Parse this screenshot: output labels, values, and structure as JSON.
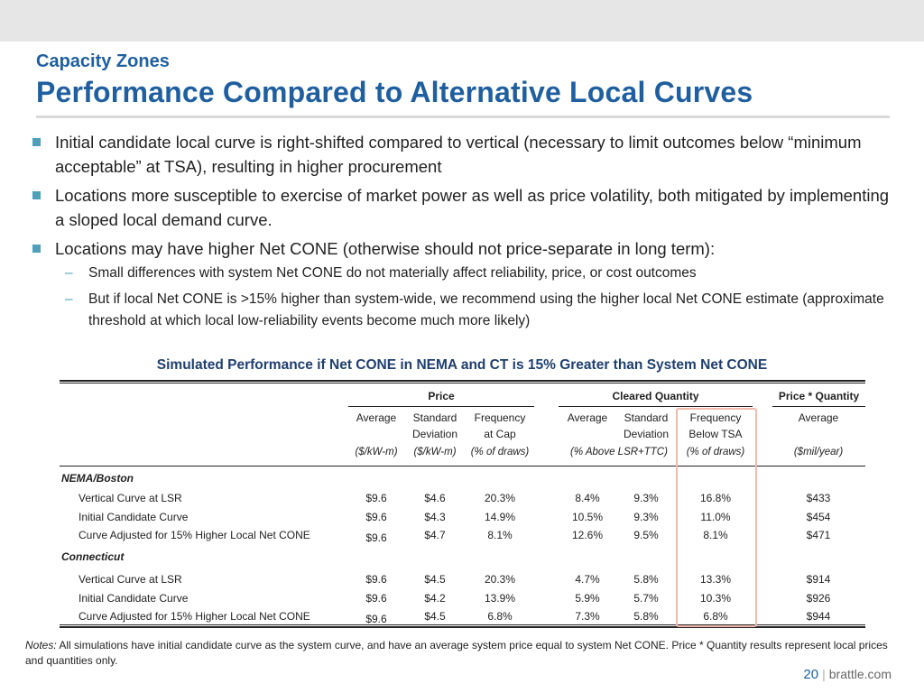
{
  "header": {
    "subtitle": "Capacity Zones",
    "title": "Performance Compared to Alternative Local Curves"
  },
  "bullets": [
    "Initial candidate local curve is right-shifted compared to vertical (necessary to limit outcomes below “minimum acceptable” at TSA), resulting in higher procurement",
    "Locations more susceptible to exercise of market power as well as price volatility, both mitigated by implementing a sloped local demand curve.",
    "Locations may have higher Net CONE (otherwise should not price-separate in long term):"
  ],
  "sub_bullets": [
    "Small differences with system Net CONE do not materially affect reliability, price, or cost outcomes",
    "But if local Net CONE is >15% higher than system-wide, we recommend using the higher local Net CONE estimate (approximate threshold at which local low-reliability events become much more likely)"
  ],
  "table": {
    "caption": "Simulated Performance if Net CONE in NEMA and CT is 15% Greater than System Net CONE",
    "groups": [
      "Price",
      "Cleared Quantity",
      "Price * Quantity"
    ],
    "col_headers": [
      [
        "Average",
        ""
      ],
      [
        "Standard",
        "Deviation"
      ],
      [
        "Frequency",
        "at Cap"
      ],
      [
        "Average",
        ""
      ],
      [
        "Standard",
        "Deviation"
      ],
      [
        "Frequency",
        "Below TSA"
      ],
      [
        "Average",
        ""
      ]
    ],
    "units": [
      "($/kW-m)",
      "($/kW-m)",
      "(% of draws)",
      "(% Above LSR+TTC)",
      "(% of draws)",
      "($mil/year)"
    ],
    "sections": [
      {
        "name": "NEMA/Boston",
        "rows": [
          {
            "label": "Vertical Curve at LSR",
            "values": [
              "$9.6",
              "$4.6",
              "20.3%",
              "8.4%",
              "9.3%",
              "16.8%",
              "$433"
            ]
          },
          {
            "label": "Initial Candidate Curve",
            "values": [
              "$9.6",
              "$4.3",
              "14.9%",
              "10.5%",
              "9.3%",
              "11.0%",
              "$454"
            ]
          },
          {
            "label": "Curve Adjusted for 15% Higher Local Net CONE",
            "values": [
              "$9.6",
              "$4.7",
              "8.1%",
              "12.6%",
              "9.5%",
              "8.1%",
              "$471"
            ]
          }
        ]
      },
      {
        "name": "Connecticut",
        "rows": [
          {
            "label": "Vertical Curve at LSR",
            "values": [
              "$9.6",
              "$4.5",
              "20.3%",
              "4.7%",
              "5.8%",
              "13.3%",
              "$914"
            ]
          },
          {
            "label": "Initial Candidate Curve",
            "values": [
              "$9.6",
              "$4.2",
              "13.9%",
              "5.9%",
              "5.7%",
              "10.3%",
              "$926"
            ]
          },
          {
            "label": "Curve Adjusted for 15% Higher Local Net CONE",
            "values": [
              "$9.6",
              "$4.5",
              "6.8%",
              "7.3%",
              "5.8%",
              "6.8%",
              "$944"
            ]
          }
        ]
      }
    ]
  },
  "notes": {
    "prefix": "Notes:",
    "text": "All simulations have initial candidate curve as the system curve, and have an average system price equal to system Net CONE. Price * Quantity results represent local prices and quantities only."
  },
  "footer": {
    "page": "20",
    "site": "brattle.com"
  },
  "colors": {
    "accent": "#1f5f9f",
    "bullet": "#4f9fba",
    "highlight": "#f2b9ad"
  }
}
